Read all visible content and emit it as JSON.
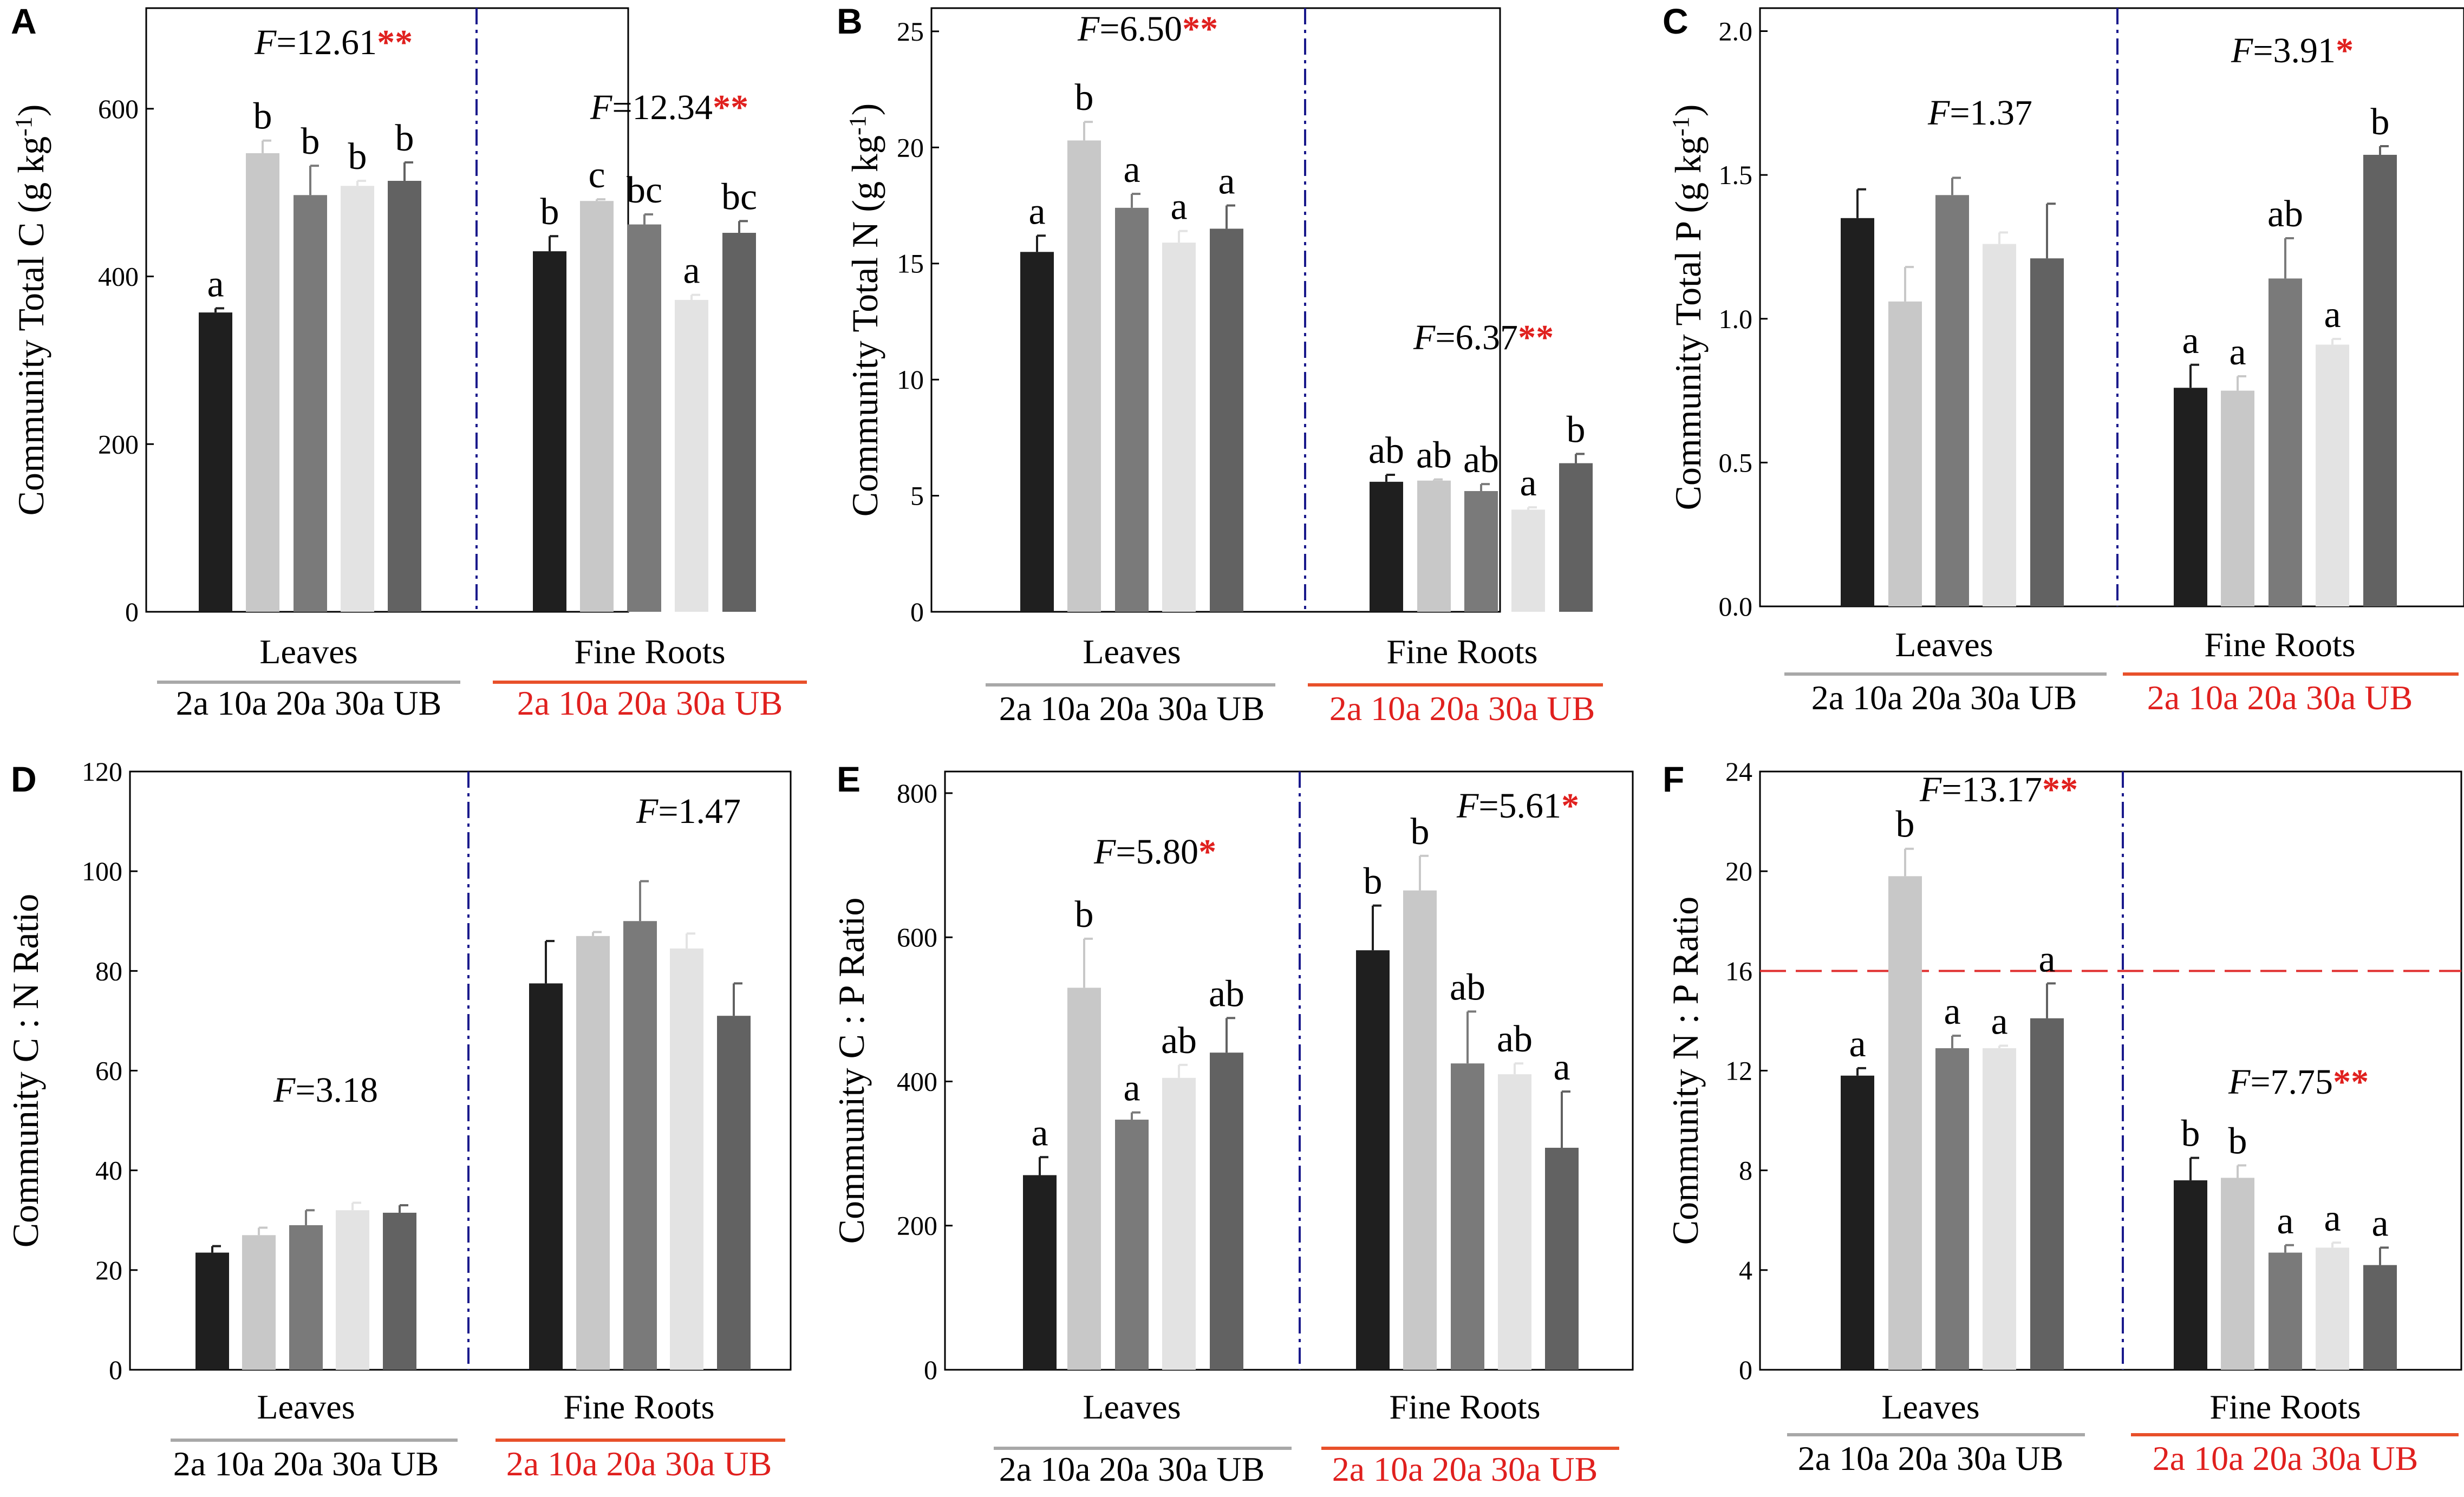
{
  "colors": {
    "bar_2a": "#1f1f1f",
    "bar_10a": "#c8c8c8",
    "bar_20a": "#7a7a7a",
    "bar_30a": "#e3e3e3",
    "bar_UB": "#626262",
    "divider": "#1a1a8c",
    "threshold": "#e03030",
    "star": "#e0201e",
    "leaves_line": "#a8a8a8",
    "roots_line": "#e8502a",
    "roots_text": "#e0201e"
  },
  "chart_data": [
    {
      "panel": "A",
      "type": "bar",
      "ylabel": "Community Total C (g kg-1)",
      "ylabel_main": "Community Total C (g kg",
      "ylabel_sup": "-1",
      "ylabel_end": ")",
      "ylim": [
        0,
        720
      ],
      "yticks": [
        "0",
        "200",
        "400",
        "600"
      ],
      "ytick_values": [
        0,
        200,
        400,
        600
      ],
      "categories": [
        "2a",
        "10a",
        "20a",
        "30a",
        "UB"
      ],
      "groups": [
        {
          "name": "Leaves",
          "values": [
            357,
            547,
            497,
            508,
            514
          ],
          "errors": [
            5,
            15,
            35,
            6,
            22
          ],
          "letters": [
            "a",
            "b",
            "b",
            "b",
            "b"
          ],
          "f_label": "F",
          "f_value": "=12.61",
          "f_stars": "**"
        },
        {
          "name": "Fine Roots",
          "values": [
            430,
            490,
            462,
            372,
            452
          ],
          "errors": [
            18,
            2,
            12,
            6,
            14
          ],
          "letters": [
            "b",
            "c",
            "bc",
            "a",
            "bc"
          ],
          "f_label": "F",
          "f_value": "=12.34",
          "f_stars": "**"
        }
      ]
    },
    {
      "panel": "B",
      "type": "bar",
      "ylabel": "Community Total N (g kg-1)",
      "ylabel_main": "Community Total N (g kg",
      "ylabel_sup": "-1",
      "ylabel_end": ")",
      "ylim": [
        0,
        26
      ],
      "yticks": [
        "0",
        "5",
        "10",
        "15",
        "20",
        "25"
      ],
      "ytick_values": [
        0,
        5,
        10,
        15,
        20,
        25
      ],
      "categories": [
        "2a",
        "10a",
        "20a",
        "30a",
        "UB"
      ],
      "groups": [
        {
          "name": "Leaves",
          "values": [
            15.5,
            20.3,
            17.4,
            15.9,
            16.5
          ],
          "errors": [
            0.7,
            0.8,
            0.6,
            0.5,
            1.0
          ],
          "letters": [
            "a",
            "b",
            "a",
            "a",
            "a"
          ],
          "f_label": "F",
          "f_value": "=6.50",
          "f_stars": "**"
        },
        {
          "name": "Fine Roots",
          "values": [
            5.6,
            5.65,
            5.2,
            4.4,
            6.4
          ],
          "errors": [
            0.3,
            0.05,
            0.3,
            0.1,
            0.4
          ],
          "letters": [
            "ab",
            "ab",
            "ab",
            "a",
            "b"
          ],
          "f_label": "F",
          "f_value": "=6.37",
          "f_stars": "**"
        }
      ]
    },
    {
      "panel": "C",
      "type": "bar",
      "ylabel": "Community Total P (g kg-1)",
      "ylabel_main": "Community Total P (g kg",
      "ylabel_sup": "-1",
      "ylabel_end": ")",
      "ylim": [
        0,
        2.08
      ],
      "yticks": [
        "0.0",
        "0.5",
        "1.0",
        "1.5",
        "2.0"
      ],
      "ytick_values": [
        0,
        0.5,
        1.0,
        1.5,
        2.0
      ],
      "categories": [
        "2a",
        "10a",
        "20a",
        "30a",
        "UB"
      ],
      "groups": [
        {
          "name": "Leaves",
          "values": [
            1.35,
            1.06,
            1.43,
            1.26,
            1.21
          ],
          "errors": [
            0.1,
            0.12,
            0.06,
            0.04,
            0.19
          ],
          "letters": [
            "",
            "",
            "",
            "",
            ""
          ],
          "f_label": "F",
          "f_value": "=1.37",
          "f_stars": ""
        },
        {
          "name": "Fine Roots",
          "values": [
            0.76,
            0.75,
            1.14,
            0.91,
            1.57
          ],
          "errors": [
            0.08,
            0.05,
            0.14,
            0.02,
            0.03
          ],
          "letters": [
            "a",
            "a",
            "ab",
            "a",
            "b"
          ],
          "f_label": "F",
          "f_value": "=3.91",
          "f_stars": "*"
        }
      ]
    },
    {
      "panel": "D",
      "type": "bar",
      "ylabel": "Community C : N Ratio",
      "ylabel_main": "Community C : N Ratio",
      "ylabel_sup": "",
      "ylabel_end": "",
      "ylim": [
        0,
        120
      ],
      "yticks": [
        "0",
        "20",
        "40",
        "60",
        "80",
        "100",
        "120"
      ],
      "ytick_values": [
        0,
        20,
        40,
        60,
        80,
        100,
        120
      ],
      "categories": [
        "2a",
        "10a",
        "20a",
        "30a",
        "UB"
      ],
      "groups": [
        {
          "name": "Leaves",
          "values": [
            23.5,
            27,
            29,
            32,
            31.5
          ],
          "errors": [
            1.3,
            1.5,
            3,
            1.5,
            1.5
          ],
          "letters": [
            "",
            "",
            "",
            "",
            ""
          ],
          "f_label": "F",
          "f_value": "=3.18",
          "f_stars": ""
        },
        {
          "name": "Fine Roots",
          "values": [
            77.5,
            87,
            90,
            84.5,
            71
          ],
          "errors": [
            8.5,
            0.8,
            8,
            3,
            6.5
          ],
          "letters": [
            "",
            "",
            "",
            "",
            ""
          ],
          "f_label": "F",
          "f_value": "=1.47",
          "f_stars": ""
        }
      ]
    },
    {
      "panel": "E",
      "type": "bar",
      "ylabel": "Community C : P Ratio",
      "ylabel_main": "Community C : P Ratio",
      "ylabel_sup": "",
      "ylabel_end": "",
      "ylim": [
        0,
        830
      ],
      "yticks": [
        "0",
        "200",
        "400",
        "600",
        "800"
      ],
      "ytick_values": [
        0,
        200,
        400,
        600,
        800
      ],
      "categories": [
        "2a",
        "10a",
        "20a",
        "30a",
        "UB"
      ],
      "groups": [
        {
          "name": "Leaves",
          "values": [
            270,
            530,
            347,
            405,
            440
          ],
          "errors": [
            25,
            68,
            10,
            18,
            48
          ],
          "letters": [
            "a",
            "b",
            "a",
            "ab",
            "ab"
          ],
          "f_label": "F",
          "f_value": "=5.80",
          "f_stars": "*"
        },
        {
          "name": "Fine Roots",
          "values": [
            582,
            665,
            425,
            410,
            308
          ],
          "errors": [
            62,
            48,
            72,
            15,
            78
          ],
          "letters": [
            "b",
            "b",
            "ab",
            "ab",
            "a"
          ],
          "f_label": "F",
          "f_value": "=5.61",
          "f_stars": "*"
        }
      ]
    },
    {
      "panel": "F",
      "type": "bar",
      "ylabel": "Community N : P Ratio",
      "ylabel_main": "Community N : P Ratio",
      "ylabel_sup": "",
      "ylabel_end": "",
      "ylim": [
        0,
        24
      ],
      "yticks": [
        "0",
        "4",
        "8",
        "12",
        "16",
        "20",
        "24"
      ],
      "ytick_values": [
        0,
        4,
        8,
        12,
        16,
        20,
        24
      ],
      "threshold": 16,
      "categories": [
        "2a",
        "10a",
        "20a",
        "30a",
        "UB"
      ],
      "groups": [
        {
          "name": "Leaves",
          "values": [
            11.8,
            19.8,
            12.9,
            12.9,
            14.1
          ],
          "errors": [
            0.3,
            1.1,
            0.5,
            0.1,
            1.4
          ],
          "letters": [
            "a",
            "b",
            "a",
            "a",
            "a"
          ],
          "f_label": "F",
          "f_value": "=13.17",
          "f_stars": "**"
        },
        {
          "name": "Fine Roots",
          "values": [
            7.6,
            7.7,
            4.7,
            4.9,
            4.2
          ],
          "errors": [
            0.9,
            0.5,
            0.3,
            0.2,
            0.7
          ],
          "letters": [
            "b",
            "b",
            "a",
            "a",
            "a"
          ],
          "f_label": "F",
          "f_value": "=7.75",
          "f_stars": "**"
        }
      ]
    }
  ]
}
